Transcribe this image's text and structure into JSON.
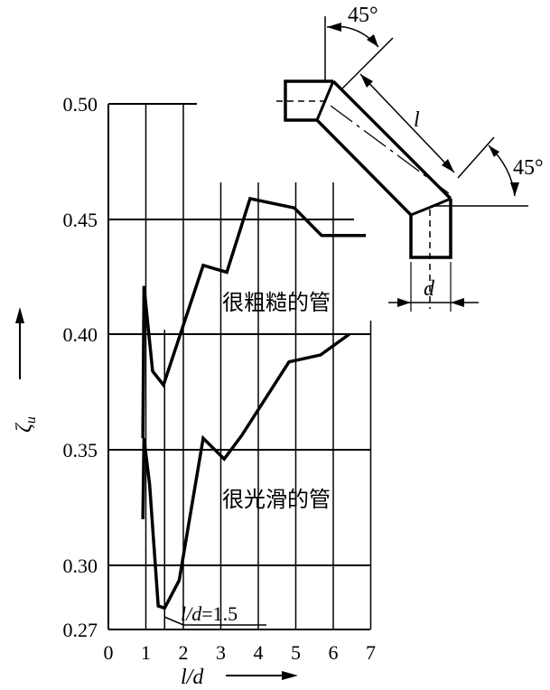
{
  "chart_data": {
    "type": "line",
    "title": "",
    "xlabel": "l/d",
    "ylabel": "ζu",
    "xlim": [
      0,
      7
    ],
    "ylim": [
      0.27,
      0.5
    ],
    "x_ticks": [
      "0",
      "1",
      "2",
      "3",
      "4",
      "5",
      "6",
      "7"
    ],
    "y_ticks": [
      "0.50",
      "0.45",
      "0.40",
      "0.35",
      "0.30",
      "0.27"
    ],
    "grid": true,
    "series": [
      {
        "name": "很粗糙的管",
        "x": [
          0.92,
          0.95,
          1.18,
          1.47,
          2.53,
          3.16,
          3.78,
          4.96,
          5.69,
          6.87
        ],
        "y": [
          0.355,
          0.421,
          0.384,
          0.378,
          0.43,
          0.427,
          0.459,
          0.455,
          0.443,
          0.443
        ]
      },
      {
        "name": "很光滑的管",
        "x": [
          0.92,
          0.95,
          1.1,
          1.33,
          1.5,
          1.89,
          2.53,
          3.09,
          3.55,
          4.82,
          5.66,
          6.43
        ],
        "y": [
          0.32,
          0.355,
          0.335,
          0.281,
          0.28,
          0.293,
          0.355,
          0.346,
          0.356,
          0.388,
          0.391,
          0.4
        ]
      }
    ],
    "annotations": [
      {
        "text": "l/d=1.5",
        "x": 1.5
      }
    ]
  },
  "labels": {
    "rough": "很粗糙的管",
    "smooth": "很光滑的管",
    "annotation_ld": "l/d",
    "annotation_eq": "=1.5",
    "xaxis": "l/d",
    "yaxis_main": "ζ",
    "yaxis_sub": "u"
  },
  "diagram": {
    "angle_top": "45°",
    "angle_right": "45°",
    "length_label": "l",
    "diameter_label": "d"
  }
}
